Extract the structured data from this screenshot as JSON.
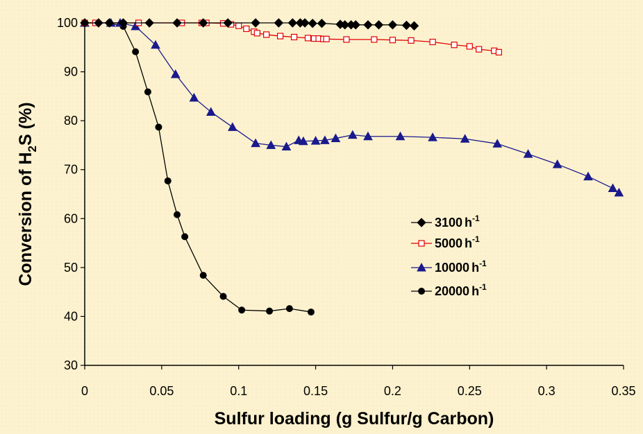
{
  "chart_data": {
    "type": "line",
    "title": "",
    "xlabel": "Sulfur loading (g Sulfur/g Carbon)",
    "ylabel_prefix": "Conversion of H",
    "ylabel_sub": "2",
    "ylabel_suffix": "S (%)",
    "xlim": [
      0,
      0.35
    ],
    "ylim": [
      30,
      100
    ],
    "x_ticks": [
      "0",
      "0.05",
      "0.1",
      "0.15",
      "0.2",
      "0.25",
      "0.3",
      "0.35"
    ],
    "y_ticks": [
      "30",
      "40",
      "50",
      "60",
      "70",
      "80",
      "90",
      "100"
    ],
    "grid": false,
    "legend_position": "center-right",
    "series": [
      {
        "name": "3100",
        "unit": "h",
        "unit_sup": "-1",
        "marker": "diamond",
        "color": "#000000",
        "x": [
          0,
          0.009,
          0.016,
          0.025,
          0.042,
          0.06,
          0.077,
          0.093,
          0.111,
          0.126,
          0.135,
          0.14,
          0.143,
          0.148,
          0.154,
          0.166,
          0.169,
          0.173,
          0.176,
          0.184,
          0.191,
          0.2,
          0.209,
          0.214
        ],
        "y": [
          100,
          100,
          100,
          100,
          100,
          100,
          100,
          100,
          100,
          100,
          100,
          100,
          100,
          99.9,
          99.9,
          99.7,
          99.6,
          99.6,
          99.6,
          99.6,
          99.6,
          99.6,
          99.5,
          99.4
        ]
      },
      {
        "name": "5000",
        "unit": "h",
        "unit_sup": "-1",
        "marker": "open-square",
        "color": "#e00000",
        "x": [
          0,
          0.007,
          0.035,
          0.063,
          0.076,
          0.079,
          0.09,
          0.095,
          0.1,
          0.105,
          0.11,
          0.112,
          0.118,
          0.127,
          0.136,
          0.145,
          0.149,
          0.152,
          0.155,
          0.157,
          0.17,
          0.188,
          0.2,
          0.212,
          0.226,
          0.24,
          0.25,
          0.256,
          0.266,
          0.269
        ],
        "y": [
          100,
          100,
          100,
          100,
          100,
          100,
          99.9,
          99.7,
          99.4,
          98.8,
          98.2,
          97.9,
          97.6,
          97.3,
          97.1,
          96.9,
          96.8,
          96.8,
          96.7,
          96.7,
          96.6,
          96.6,
          96.5,
          96.4,
          96.1,
          95.5,
          95.2,
          94.6,
          94.3,
          94.0
        ]
      },
      {
        "name": "10000",
        "unit": "h",
        "unit_sup": "-1",
        "marker": "triangle",
        "color": "#1a1a8c",
        "x": [
          0,
          0.017,
          0.023,
          0.033,
          0.046,
          0.059,
          0.071,
          0.082,
          0.096,
          0.111,
          0.121,
          0.131,
          0.139,
          0.142,
          0.15,
          0.156,
          0.163,
          0.174,
          0.184,
          0.205,
          0.226,
          0.247,
          0.268,
          0.288,
          0.307,
          0.327,
          0.343,
          0.347
        ],
        "y": [
          100,
          100,
          100,
          99.3,
          95.5,
          89.5,
          84.7,
          81.8,
          78.7,
          75.4,
          75,
          74.7,
          76,
          75.8,
          75.9,
          76,
          76.4,
          77.1,
          76.8,
          76.8,
          76.6,
          76.3,
          75.3,
          73.2,
          71.1,
          68.6,
          66.2,
          65.3
        ]
      },
      {
        "name": "20000",
        "unit": "h",
        "unit_sup": "-1",
        "marker": "circle",
        "color": "#000000",
        "x": [
          0,
          0.016,
          0.025,
          0.033,
          0.041,
          0.048,
          0.054,
          0.06,
          0.065,
          0.077,
          0.09,
          0.102,
          0.12,
          0.133,
          0.147
        ],
        "y": [
          100,
          100,
          99.3,
          94.1,
          85.9,
          78.7,
          67.7,
          60.8,
          56.3,
          48.4,
          44.1,
          41.3,
          41.1,
          41.6,
          40.9
        ]
      }
    ]
  }
}
